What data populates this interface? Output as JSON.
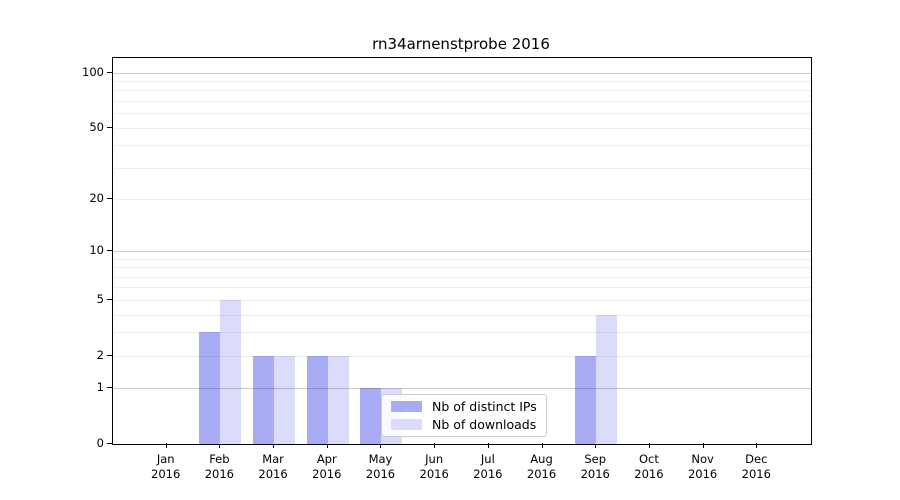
{
  "title": "rn34arnenstprobe 2016",
  "colors": {
    "distinct_ips": "#aaabf5",
    "downloads": "#dadcf9",
    "grid_major": "rgba(80,80,80,0.30)",
    "grid_minor": "rgba(0,0,0,0.07)",
    "axis": "#000000",
    "legend_border": "#cccccc",
    "text": "#000000"
  },
  "legend": {
    "items": [
      {
        "label": "Nb of distinct IPs",
        "color": "#aaabf5"
      },
      {
        "label": "Nb of downloads",
        "color": "#dadcf9"
      }
    ]
  },
  "axes": {
    "x_months": [
      "Jan",
      "Feb",
      "Mar",
      "Apr",
      "May",
      "Jun",
      "Jul",
      "Aug",
      "Sep",
      "Oct",
      "Nov",
      "Dec"
    ],
    "x_year": "2016",
    "y_tick_labels": [
      0,
      1,
      2,
      5,
      10,
      20,
      50,
      100
    ],
    "y_major_gridlines": [
      1,
      10,
      100
    ],
    "y_minor_gridlines": [
      2,
      3,
      4,
      5,
      6,
      7,
      8,
      9,
      20,
      30,
      40,
      50,
      60,
      70,
      80,
      90
    ]
  },
  "chart_data": {
    "type": "bar",
    "title": "rn34arnenstprobe 2016",
    "categories": [
      "Jan 2016",
      "Feb 2016",
      "Mar 2016",
      "Apr 2016",
      "May 2016",
      "Jun 2016",
      "Jul 2016",
      "Aug 2016",
      "Sep 2016",
      "Oct 2016",
      "Nov 2016",
      "Dec 2016"
    ],
    "series": [
      {
        "name": "Nb of distinct IPs",
        "color": "#aaabf5",
        "values": [
          0,
          3,
          2,
          2,
          1,
          0,
          0,
          0,
          2,
          0,
          0,
          0
        ]
      },
      {
        "name": "Nb of downloads",
        "color": "#dadcf9",
        "values": [
          0,
          5,
          2,
          2,
          1,
          0,
          0,
          0,
          4,
          0,
          0,
          0
        ]
      }
    ],
    "y_scale": "log1p",
    "y_ticks": [
      0,
      1,
      2,
      5,
      10,
      20,
      50,
      100
    ],
    "ylim": [
      0,
      120
    ],
    "grid": true,
    "legend_position": "lower center inside"
  }
}
